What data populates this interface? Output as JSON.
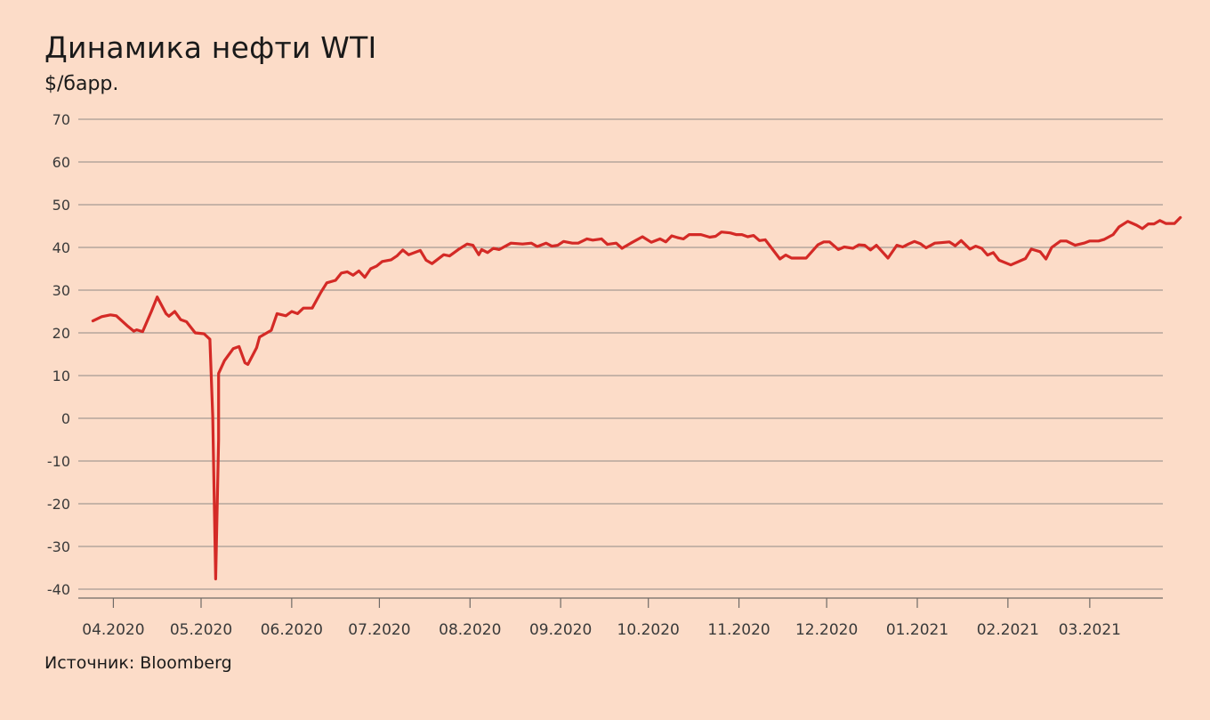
{
  "chart_data": {
    "type": "line",
    "title": "Динамика нефти WTI",
    "subtitle": "$/барр.",
    "source": "Источник: Bloomberg",
    "ylim": [
      -40,
      70
    ],
    "yticks": [
      -40,
      -30,
      -20,
      -10,
      0,
      10,
      20,
      30,
      40,
      50,
      60,
      70
    ],
    "xlim": [
      "2020-03-20",
      "2021-03-26"
    ],
    "xticks": [
      {
        "label": "04.2020",
        "date": "2020-04-01"
      },
      {
        "label": "05.2020",
        "date": "2020-05-01"
      },
      {
        "label": "06.2020",
        "date": "2020-06-01"
      },
      {
        "label": "07.2020",
        "date": "2020-07-01"
      },
      {
        "label": "08.2020",
        "date": "2020-08-01"
      },
      {
        "label": "09.2020",
        "date": "2020-09-01"
      },
      {
        "label": "10.2020",
        "date": "2020-10-01"
      },
      {
        "label": "11.2020",
        "date": "2020-11-01"
      },
      {
        "label": "12.2020",
        "date": "2020-12-01"
      },
      {
        "label": "01.2021",
        "date": "2021-01-01"
      },
      {
        "label": "02.2021",
        "date": "2021-02-01"
      },
      {
        "label": "03.2021",
        "date": "2021-03-01"
      }
    ],
    "grid": true,
    "line_color": "#d42a26",
    "series": [
      {
        "values": [
          [
            "2020-03-25",
            22.8
          ],
          [
            "2020-03-28",
            23.8
          ],
          [
            "2020-03-31",
            24.2
          ],
          [
            "2020-04-02",
            24.0
          ],
          [
            "2020-04-06",
            21.5
          ],
          [
            "2020-04-08",
            20.4
          ],
          [
            "2020-04-09",
            20.7
          ],
          [
            "2020-04-11",
            20.3
          ],
          [
            "2020-04-14",
            25.0
          ],
          [
            "2020-04-16",
            28.4
          ],
          [
            "2020-04-19",
            24.5
          ],
          [
            "2020-04-20",
            23.9
          ],
          [
            "2020-04-22",
            25.0
          ],
          [
            "2020-04-24",
            23.1
          ],
          [
            "2020-04-26",
            22.6
          ],
          [
            "2020-04-29",
            20.0
          ],
          [
            "2020-05-02",
            19.8
          ],
          [
            "2020-05-04",
            18.5
          ],
          [
            "2020-05-05",
            0.5
          ],
          [
            "2020-05-06",
            -37.6
          ],
          [
            "2020-05-07",
            -5.0
          ],
          [
            "2020-05-07",
            10.5
          ],
          [
            "2020-05-09",
            13.5
          ],
          [
            "2020-05-12",
            16.3
          ],
          [
            "2020-05-14",
            16.8
          ],
          [
            "2020-05-16",
            13.0
          ],
          [
            "2020-05-17",
            12.6
          ],
          [
            "2020-05-20",
            16.5
          ],
          [
            "2020-05-21",
            19.0
          ],
          [
            "2020-05-25",
            20.6
          ],
          [
            "2020-05-27",
            24.5
          ],
          [
            "2020-05-30",
            24.0
          ],
          [
            "2020-06-01",
            25.0
          ],
          [
            "2020-06-03",
            24.5
          ],
          [
            "2020-06-05",
            25.8
          ],
          [
            "2020-06-08",
            25.8
          ],
          [
            "2020-06-11",
            29.5
          ],
          [
            "2020-06-13",
            31.7
          ],
          [
            "2020-06-16",
            32.3
          ],
          [
            "2020-06-18",
            34.0
          ],
          [
            "2020-06-20",
            34.3
          ],
          [
            "2020-06-22",
            33.5
          ],
          [
            "2020-06-24",
            34.5
          ],
          [
            "2020-06-26",
            33.0
          ],
          [
            "2020-06-28",
            35.0
          ],
          [
            "2020-06-30",
            35.6
          ],
          [
            "2020-07-02",
            36.7
          ],
          [
            "2020-07-05",
            37.1
          ],
          [
            "2020-07-07",
            38.0
          ],
          [
            "2020-07-09",
            39.4
          ],
          [
            "2020-07-11",
            38.3
          ],
          [
            "2020-07-15",
            39.3
          ],
          [
            "2020-07-17",
            37.0
          ],
          [
            "2020-07-19",
            36.2
          ],
          [
            "2020-07-23",
            38.3
          ],
          [
            "2020-07-25",
            38.0
          ],
          [
            "2020-07-28",
            39.5
          ],
          [
            "2020-07-31",
            40.8
          ],
          [
            "2020-08-02",
            40.5
          ],
          [
            "2020-08-04",
            38.3
          ],
          [
            "2020-08-05",
            39.5
          ],
          [
            "2020-08-07",
            38.8
          ],
          [
            "2020-08-09",
            39.8
          ],
          [
            "2020-08-11",
            39.5
          ],
          [
            "2020-08-15",
            41.0
          ],
          [
            "2020-08-19",
            40.8
          ],
          [
            "2020-08-22",
            41.0
          ],
          [
            "2020-08-24",
            40.2
          ],
          [
            "2020-08-27",
            41.0
          ],
          [
            "2020-08-29",
            40.3
          ],
          [
            "2020-08-31",
            40.5
          ],
          [
            "2020-09-02",
            41.4
          ],
          [
            "2020-09-05",
            41.0
          ],
          [
            "2020-09-07",
            41.0
          ],
          [
            "2020-09-10",
            42.0
          ],
          [
            "2020-09-12",
            41.7
          ],
          [
            "2020-09-15",
            42.0
          ],
          [
            "2020-09-17",
            40.7
          ],
          [
            "2020-09-20",
            41.0
          ],
          [
            "2020-09-22",
            39.8
          ],
          [
            "2020-09-25",
            41.0
          ],
          [
            "2020-09-29",
            42.5
          ],
          [
            "2020-10-02",
            41.2
          ],
          [
            "2020-10-05",
            42.0
          ],
          [
            "2020-10-07",
            41.3
          ],
          [
            "2020-10-09",
            42.7
          ],
          [
            "2020-10-11",
            42.3
          ],
          [
            "2020-10-13",
            42.0
          ],
          [
            "2020-10-15",
            43.0
          ],
          [
            "2020-10-19",
            43.0
          ],
          [
            "2020-10-22",
            42.4
          ],
          [
            "2020-10-24",
            42.6
          ],
          [
            "2020-10-26",
            43.6
          ],
          [
            "2020-10-29",
            43.4
          ],
          [
            "2020-10-31",
            43.0
          ],
          [
            "2020-11-02",
            43.0
          ],
          [
            "2020-11-04",
            42.5
          ],
          [
            "2020-11-06",
            42.8
          ],
          [
            "2020-11-08",
            41.6
          ],
          [
            "2020-11-10",
            41.8
          ],
          [
            "2020-11-15",
            37.3
          ],
          [
            "2020-11-17",
            38.2
          ],
          [
            "2020-11-19",
            37.5
          ],
          [
            "2020-11-24",
            37.5
          ],
          [
            "2020-11-28",
            40.6
          ],
          [
            "2020-11-30",
            41.3
          ],
          [
            "2020-12-02",
            41.3
          ],
          [
            "2020-12-05",
            39.5
          ],
          [
            "2020-12-07",
            40.1
          ],
          [
            "2020-12-10",
            39.8
          ],
          [
            "2020-12-12",
            40.6
          ],
          [
            "2020-12-14",
            40.5
          ],
          [
            "2020-12-16",
            39.4
          ],
          [
            "2020-12-18",
            40.5
          ],
          [
            "2020-12-22",
            37.5
          ],
          [
            "2020-12-25",
            40.5
          ],
          [
            "2020-12-27",
            40.1
          ],
          [
            "2020-12-29",
            40.8
          ],
          [
            "2020-12-31",
            41.4
          ],
          [
            "2021-01-02",
            40.9
          ],
          [
            "2021-01-04",
            39.9
          ],
          [
            "2021-01-07",
            41.0
          ],
          [
            "2021-01-09",
            41.1
          ],
          [
            "2021-01-12",
            41.3
          ],
          [
            "2021-01-14",
            40.4
          ],
          [
            "2021-01-16",
            41.6
          ],
          [
            "2021-01-19",
            39.6
          ],
          [
            "2021-01-21",
            40.3
          ],
          [
            "2021-01-23",
            39.8
          ],
          [
            "2021-01-25",
            38.2
          ],
          [
            "2021-01-27",
            38.8
          ],
          [
            "2021-01-29",
            37.0
          ],
          [
            "2021-02-02",
            35.9
          ],
          [
            "2021-02-05",
            36.8
          ],
          [
            "2021-02-07",
            37.4
          ],
          [
            "2021-02-09",
            39.6
          ],
          [
            "2021-02-12",
            39.0
          ],
          [
            "2021-02-14",
            37.3
          ],
          [
            "2021-02-16",
            40.0
          ],
          [
            "2021-02-19",
            41.5
          ],
          [
            "2021-02-21",
            41.5
          ],
          [
            "2021-02-24",
            40.5
          ],
          [
            "2021-02-27",
            41.0
          ],
          [
            "2021-03-01",
            41.5
          ],
          [
            "2021-03-04",
            41.5
          ],
          [
            "2021-03-06",
            41.9
          ],
          [
            "2021-03-09",
            43.0
          ],
          [
            "2021-03-11",
            44.8
          ],
          [
            "2021-03-14",
            46.1
          ],
          [
            "2021-03-17",
            45.2
          ],
          [
            "2021-03-19",
            44.4
          ],
          [
            "2021-03-21",
            45.5
          ],
          [
            "2021-03-23",
            45.5
          ],
          [
            "2021-03-25",
            46.3
          ],
          [
            "2021-03-27",
            45.6
          ],
          [
            "2021-03-30",
            45.6
          ],
          [
            "2021-04-01",
            47.0
          ]
        ]
      }
    ]
  }
}
